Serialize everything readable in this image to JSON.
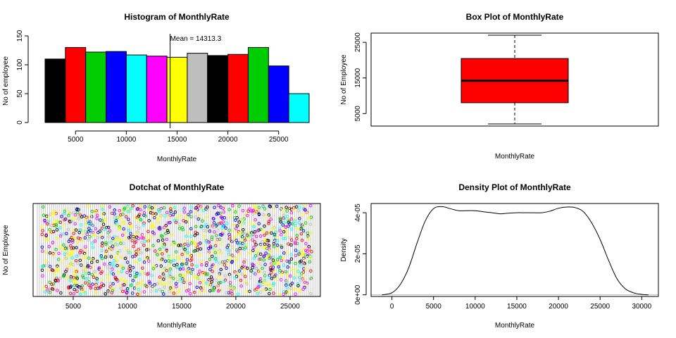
{
  "colors": [
    "#000000",
    "#ff0000",
    "#00cd00",
    "#0000ff",
    "#00ffff",
    "#ff00ff",
    "#ffff00",
    "#bebebe"
  ],
  "chart_data": [
    {
      "type": "bar",
      "title": "Histogram of MonthlyRate",
      "xlabel": "MonthlyRate",
      "ylabel": "No of employee",
      "bin_edges": [
        2000,
        4000,
        6000,
        8000,
        10000,
        12000,
        14000,
        16000,
        18000,
        20000,
        22000,
        24000,
        26000,
        28000
      ],
      "values": [
        110,
        130,
        122,
        123,
        117,
        115,
        113,
        120,
        116,
        118,
        130,
        98,
        50
      ],
      "xticks": [
        5000,
        10000,
        15000,
        20000,
        25000
      ],
      "yticks": [
        0,
        50,
        100,
        150
      ],
      "xlim": [
        2000,
        28000
      ],
      "ylim": [
        0,
        150
      ],
      "mean": 14313.3,
      "mean_label": "Mean = 14313.3"
    },
    {
      "type": "box",
      "title": "Box Plot of MonthlyRate",
      "xlabel": "MonthlyRate",
      "ylabel": "No of Employee",
      "min": 2094,
      "q1": 8047,
      "median": 14236,
      "q3": 20462,
      "max": 26999,
      "yticks": [
        5000,
        15000,
        25000
      ],
      "ylim": [
        1500,
        27600
      ],
      "fill": "#ff0000"
    },
    {
      "type": "scatter",
      "title": "Dotchat of MonthlyRate",
      "xlabel": "MonthlyRate",
      "ylabel": "No of Employee",
      "xlim": [
        1300,
        27800
      ],
      "xticks": [
        5000,
        10000,
        15000,
        20000,
        25000
      ],
      "n_points": 1470
    },
    {
      "type": "line",
      "title": "Density Plot of MonthlyRate",
      "xlabel": "MonthlyRate",
      "ylabel": "Density",
      "x": [
        -1200,
        0,
        1000,
        2000,
        3000,
        4000,
        5000,
        6000,
        7000,
        8000,
        9000,
        10000,
        11000,
        12000,
        13000,
        14000,
        15000,
        16000,
        17000,
        18000,
        19000,
        20000,
        21000,
        22000,
        23000,
        24000,
        25000,
        26000,
        27000,
        28000,
        29000,
        30000,
        30800
      ],
      "y": [
        0,
        1e-06,
        5e-06,
        1.3e-05,
        2.5e-05,
        3.6e-05,
        4.2e-05,
        4.3e-05,
        4.2e-05,
        4.1e-05,
        4.1e-05,
        4.1e-05,
        4.05e-05,
        4e-05,
        3.95e-05,
        3.98e-05,
        4e-05,
        4e-05,
        4e-05,
        4e-05,
        4.08e-05,
        4.22e-05,
        4.28e-05,
        4.25e-05,
        4.05e-05,
        3.5e-05,
        2.7e-05,
        1.7e-05,
        8e-06,
        3e-06,
        1e-06,
        2e-07,
        0
      ],
      "xticks": [
        0,
        5000,
        10000,
        15000,
        20000,
        25000,
        30000
      ],
      "xtick_labels": [
        "0",
        "5000",
        "10000",
        "15000",
        "20000",
        "25000",
        "30000"
      ],
      "yticks": [
        0,
        2e-05,
        4e-05
      ],
      "ytick_labels": [
        "0e+00",
        "2e-05",
        "4e-05"
      ],
      "xlim": [
        -2500,
        32000
      ],
      "ylim": [
        -8e-07,
        4.45e-05
      ]
    }
  ]
}
